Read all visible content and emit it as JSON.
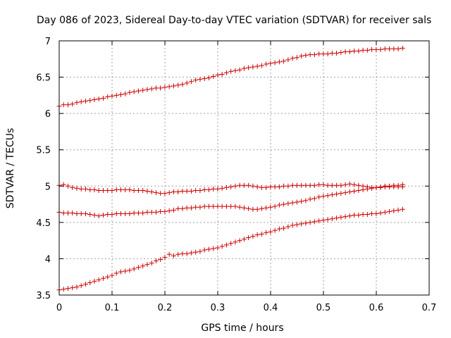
{
  "chart_data": {
    "type": "scatter",
    "title": "Day 086 of 2023, Sidereal Day-to-day VTEC variation (SDTVAR) for receiver sals",
    "xlabel": "GPS time / hours",
    "ylabel": "SDTVAR / TECUs",
    "xlim": [
      0,
      0.7
    ],
    "ylim": [
      3.5,
      7
    ],
    "xticks": [
      "0",
      "0.1",
      "0.2",
      "0.3",
      "0.4",
      "0.5",
      "0.6",
      "0.7"
    ],
    "yticks": [
      "3.5",
      "4",
      "4.5",
      "5",
      "5.5",
      "6",
      "6.5",
      "7"
    ],
    "xtick_values": [
      0,
      0.1,
      0.2,
      0.3,
      0.4,
      0.5,
      0.6,
      0.7
    ],
    "ytick_values": [
      3.5,
      4,
      4.5,
      5,
      5.5,
      6,
      6.5,
      7
    ],
    "grid": true,
    "marker": "+",
    "color": "#cc0000",
    "sample_step_hours": 0.00833,
    "series": [
      {
        "name": "series-top",
        "values": [
          6.1,
          6.12,
          6.12,
          6.13,
          6.15,
          6.16,
          6.17,
          6.18,
          6.19,
          6.2,
          6.21,
          6.23,
          6.24,
          6.25,
          6.26,
          6.27,
          6.29,
          6.3,
          6.31,
          6.32,
          6.33,
          6.34,
          6.35,
          6.35,
          6.36,
          6.37,
          6.38,
          6.39,
          6.4,
          6.42,
          6.44,
          6.46,
          6.47,
          6.48,
          6.49,
          6.51,
          6.53,
          6.54,
          6.56,
          6.58,
          6.59,
          6.6,
          6.62,
          6.63,
          6.64,
          6.65,
          6.66,
          6.68,
          6.69,
          6.7,
          6.71,
          6.72,
          6.74,
          6.76,
          6.77,
          6.79,
          6.8,
          6.81,
          6.81,
          6.82,
          6.82,
          6.82,
          6.83,
          6.83,
          6.84,
          6.85,
          6.85,
          6.86,
          6.86,
          6.87,
          6.87,
          6.88,
          6.88,
          6.88,
          6.89,
          6.89,
          6.89,
          6.89,
          6.9
        ]
      },
      {
        "name": "series-upper-mid",
        "values": [
          5.01,
          5.02,
          5.0,
          4.98,
          4.97,
          4.96,
          4.96,
          4.95,
          4.95,
          4.94,
          4.94,
          4.94,
          4.94,
          4.95,
          4.95,
          4.95,
          4.95,
          4.94,
          4.94,
          4.94,
          4.93,
          4.92,
          4.91,
          4.9,
          4.9,
          4.91,
          4.92,
          4.92,
          4.93,
          4.93,
          4.93,
          4.94,
          4.94,
          4.95,
          4.95,
          4.96,
          4.96,
          4.97,
          4.98,
          4.99,
          5.0,
          5.01,
          5.01,
          5.01,
          5.0,
          4.99,
          4.98,
          4.98,
          4.99,
          4.99,
          4.99,
          5.0,
          5.0,
          5.01,
          5.01,
          5.01,
          5.01,
          5.01,
          5.01,
          5.02,
          5.02,
          5.01,
          5.01,
          5.01,
          5.01,
          5.02,
          5.03,
          5.02,
          5.01,
          5.0,
          4.99,
          4.98,
          4.98,
          4.98,
          4.99,
          4.99,
          4.99,
          4.99,
          4.99
        ]
      },
      {
        "name": "series-lower-mid",
        "values": [
          4.64,
          4.63,
          4.63,
          4.63,
          4.62,
          4.62,
          4.62,
          4.61,
          4.6,
          4.59,
          4.6,
          4.61,
          4.61,
          4.62,
          4.62,
          4.62,
          4.62,
          4.63,
          4.63,
          4.63,
          4.64,
          4.64,
          4.64,
          4.65,
          4.65,
          4.66,
          4.67,
          4.69,
          4.69,
          4.7,
          4.7,
          4.71,
          4.71,
          4.72,
          4.72,
          4.72,
          4.72,
          4.72,
          4.72,
          4.72,
          4.72,
          4.71,
          4.7,
          4.69,
          4.68,
          4.68,
          4.69,
          4.7,
          4.71,
          4.72,
          4.74,
          4.75,
          4.76,
          4.77,
          4.78,
          4.79,
          4.8,
          4.82,
          4.83,
          4.85,
          4.86,
          4.87,
          4.88,
          4.89,
          4.9,
          4.91,
          4.92,
          4.93,
          4.94,
          4.95,
          4.96,
          4.97,
          4.98,
          4.99,
          5.0,
          5.0,
          5.01,
          5.01,
          5.02
        ]
      },
      {
        "name": "series-bottom",
        "values": [
          3.57,
          3.58,
          3.59,
          3.6,
          3.61,
          3.63,
          3.65,
          3.67,
          3.69,
          3.71,
          3.73,
          3.75,
          3.77,
          3.8,
          3.82,
          3.83,
          3.84,
          3.86,
          3.88,
          3.9,
          3.92,
          3.94,
          3.97,
          3.99,
          4.02,
          4.06,
          4.04,
          4.06,
          4.07,
          4.07,
          4.08,
          4.09,
          4.1,
          4.12,
          4.13,
          4.14,
          4.15,
          4.17,
          4.19,
          4.21,
          4.23,
          4.25,
          4.27,
          4.29,
          4.31,
          4.33,
          4.34,
          4.36,
          4.37,
          4.39,
          4.41,
          4.42,
          4.44,
          4.46,
          4.47,
          4.48,
          4.49,
          4.5,
          4.51,
          4.52,
          4.53,
          4.54,
          4.55,
          4.56,
          4.57,
          4.58,
          4.59,
          4.6,
          4.6,
          4.61,
          4.61,
          4.62,
          4.62,
          4.63,
          4.64,
          4.65,
          4.66,
          4.67,
          4.68
        ]
      }
    ]
  }
}
